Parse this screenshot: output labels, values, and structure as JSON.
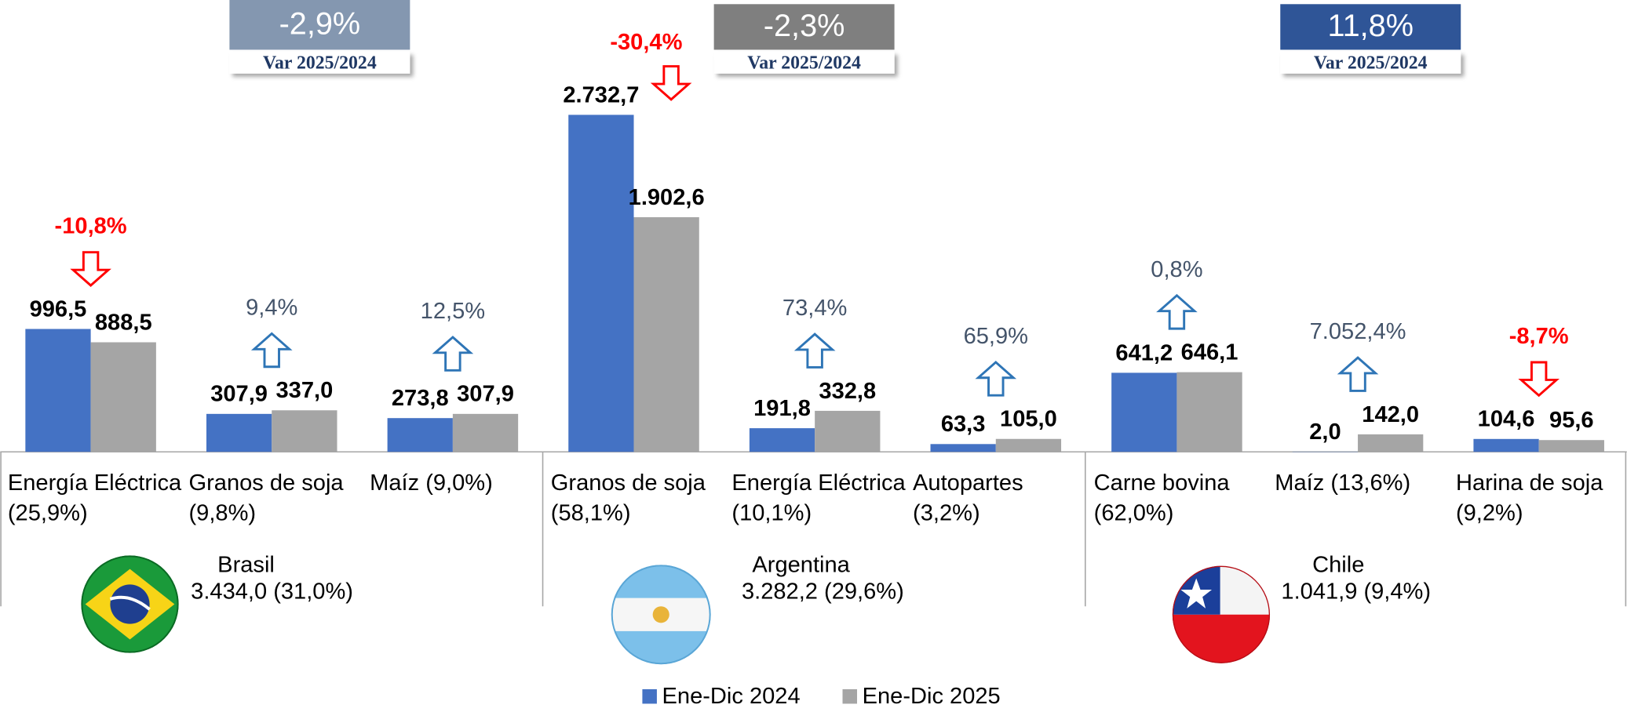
{
  "chart_data": {
    "type": "bar",
    "categories": [
      "Energía Eléctrica\n(25,9%)",
      "Granos de soja\n(9,8%)",
      "Maíz (9,0%)",
      "Granos de soja\n(58,1%)",
      "Energía Eléctrica\n(10,1%)",
      "Autopartes\n(3,2%)",
      "Carne bovina\n(62,0%)",
      "Maíz (13,6%)",
      "Harina de soja\n(9,2%)"
    ],
    "series": [
      {
        "name": "Ene-Dic 2024",
        "color": "#4472c4",
        "values": [
          996.5,
          307.9,
          273.8,
          2732.7,
          191.8,
          63.3,
          641.2,
          2.0,
          104.6
        ],
        "value_labels": [
          "996,5",
          "307,9",
          "273,8",
          "2.732,7",
          "191,8",
          "63,3",
          "641,2",
          "2,0",
          "104,6"
        ]
      },
      {
        "name": "Ene-Dic 2025",
        "color": "#a5a5a5",
        "values": [
          888.5,
          337.0,
          307.9,
          1902.6,
          332.8,
          105.0,
          646.1,
          142.0,
          95.6
        ],
        "value_labels": [
          "888,5",
          "337,0",
          "307,9",
          "1.902,6",
          "332,8",
          "105,0",
          "646,1",
          "142,0",
          "95,6"
        ]
      }
    ],
    "changes": [
      {
        "value": -10.8,
        "label": "-10,8%"
      },
      {
        "value": 9.4,
        "label": "9,4%"
      },
      {
        "value": 12.5,
        "label": "12,5%"
      },
      {
        "value": -30.4,
        "label": "-30,4%"
      },
      {
        "value": 73.4,
        "label": "73,4%"
      },
      {
        "value": 65.9,
        "label": "65,9%"
      },
      {
        "value": 0.8,
        "label": "0,8%"
      },
      {
        "value": 7052.4,
        "label": "7.052,4%"
      },
      {
        "value": -8.7,
        "label": "-8,7%"
      }
    ],
    "variation_caption": "Var 2025/2024",
    "groups": [
      {
        "name": "Brasil",
        "summary": "3.434,0 (31,0%)",
        "variation": {
          "value": -2.9,
          "label": "-2,9%"
        },
        "color": "#8497b0"
      },
      {
        "name": "Argentina",
        "summary": "3.282,2 (29,6%)",
        "variation": {
          "value": -2.3,
          "label": "-2,3%"
        },
        "color": "#7f7f7f"
      },
      {
        "name": "Chile",
        "summary": "1.041,9 (9,4%)",
        "variation": {
          "value": 11.8,
          "label": "11,8%"
        },
        "color": "#2f5597"
      }
    ],
    "ylim": [
      0,
      3000
    ]
  }
}
